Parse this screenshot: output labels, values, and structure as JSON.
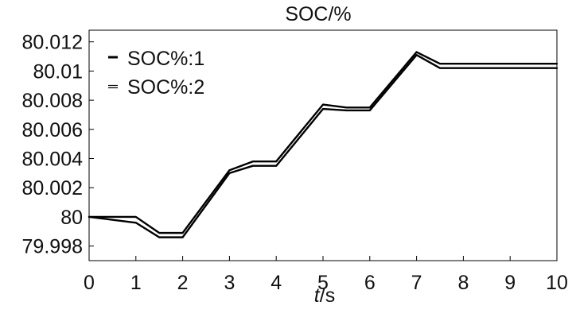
{
  "chart_data": {
    "type": "line",
    "title": "SOC/%",
    "xlabel": {
      "italic": "t",
      "rest": "/s"
    },
    "ylabel": "",
    "xlim": [
      0,
      10
    ],
    "ylim": [
      79.997,
      80.0128
    ],
    "x_ticks": [
      0,
      1,
      2,
      3,
      4,
      5,
      6,
      7,
      8,
      9,
      10
    ],
    "x_tick_labels": [
      "0",
      "1",
      "2",
      "3",
      "4",
      "5",
      "6",
      "7",
      "8",
      "9",
      "10"
    ],
    "y_ticks": [
      79.998,
      80,
      80.002,
      80.004,
      80.006,
      80.008,
      80.01,
      80.012
    ],
    "y_tick_labels": [
      "79.998",
      "80",
      "80.002",
      "80.004",
      "80.006",
      "80.008",
      "80.01",
      "80.012"
    ],
    "grid": false,
    "legend_position": "top-left",
    "series": [
      {
        "name": "SOC%:1",
        "color": "#000000",
        "x": [
          0,
          1,
          1.5,
          2,
          3,
          3.5,
          4,
          5,
          5.5,
          6,
          7,
          7.5,
          10
        ],
        "y": [
          80.0,
          80.0,
          79.9989,
          79.9989,
          80.0032,
          80.0038,
          80.0038,
          80.0077,
          80.0075,
          80.0075,
          80.0113,
          80.0105,
          80.0105
        ]
      },
      {
        "name": "SOC%:2",
        "color": "#000000",
        "x": [
          0,
          1,
          1.5,
          2,
          3,
          3.5,
          4,
          5,
          5.5,
          6,
          7,
          7.5,
          10
        ],
        "y": [
          80.0,
          79.9996,
          79.9986,
          79.9986,
          80.003,
          80.0035,
          80.0035,
          80.0074,
          80.0073,
          80.0073,
          80.0111,
          80.0102,
          80.0102
        ]
      }
    ]
  }
}
